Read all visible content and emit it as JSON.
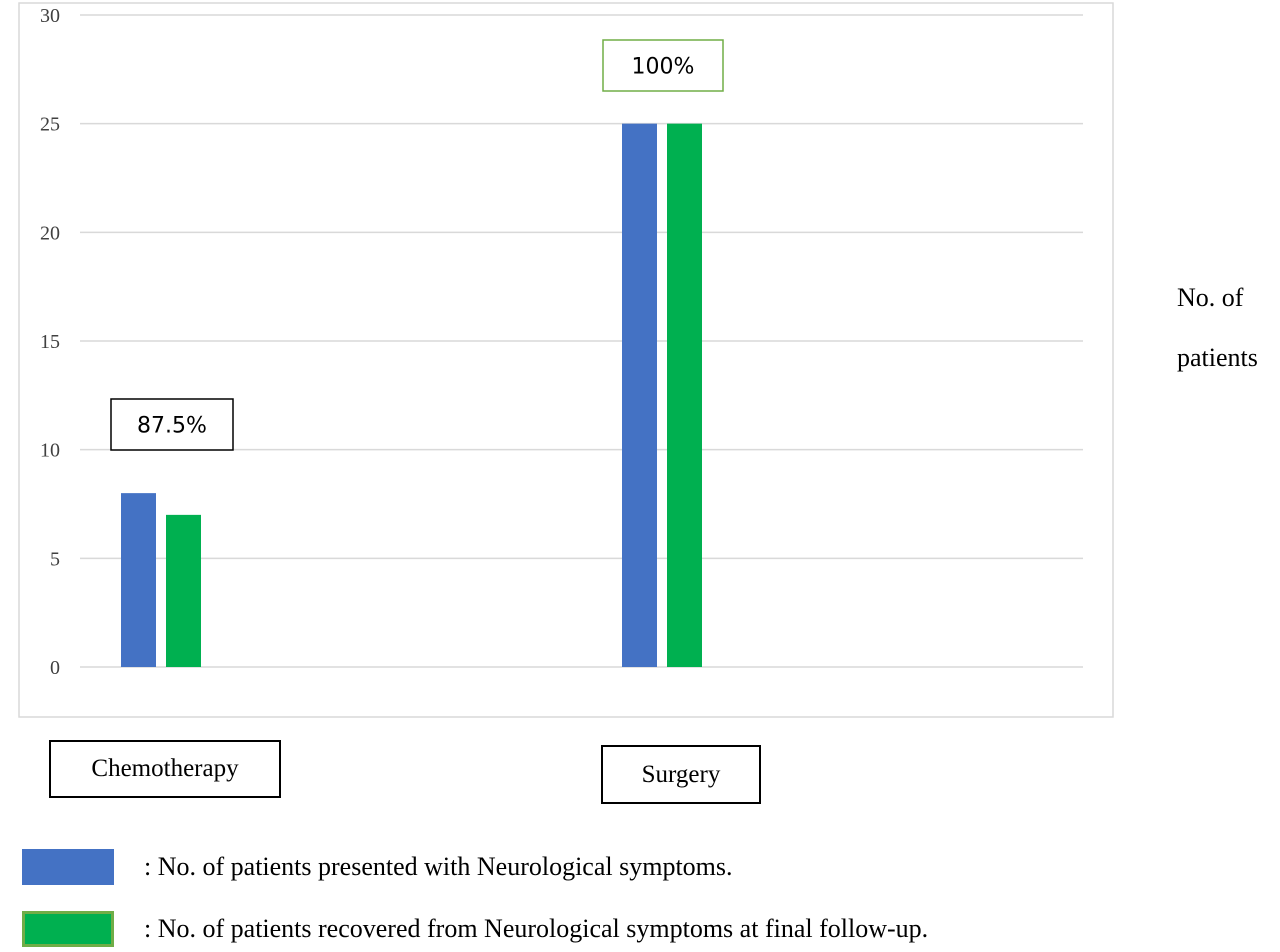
{
  "chart_data": {
    "type": "bar",
    "categories": [
      "Chemotherapy",
      "Surgery"
    ],
    "series": [
      {
        "name": ": No. of patients presented with Neurological symptoms.",
        "values": [
          8,
          25
        ],
        "color": "#4472c4"
      },
      {
        "name": ": No. of patients recovered from Neurological symptoms at final follow-up.",
        "values": [
          7,
          25
        ],
        "color": "#00b050"
      }
    ],
    "data_labels": [
      "87.5%",
      "100%"
    ],
    "ylabel": "No. of patients",
    "ylabel_lines": [
      "No. of",
      "patients"
    ],
    "ylim": [
      0,
      30
    ],
    "yticks": [
      0,
      5,
      10,
      15,
      20,
      25,
      30
    ],
    "grid": true,
    "legend_position": "bottom-left"
  }
}
